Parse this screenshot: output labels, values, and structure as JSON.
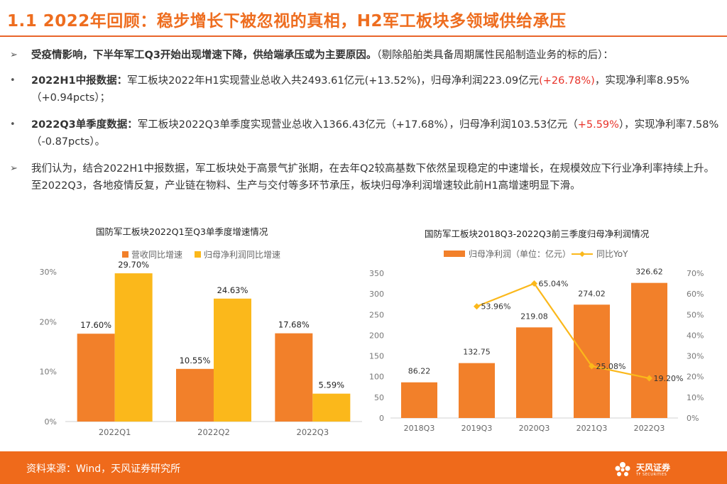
{
  "title": "1.1 2022年回顾：稳步增长下被忽视的真相，H2军工板块多领域供给承压",
  "bullets": [
    {
      "marker": "➢",
      "bold": "受疫情影响，下半年军工Q3开始出现增速下降，供给端承压或为主要原因。",
      "text": "（剔除船舶类具备周期属性民船制造业务的标的后）："
    },
    {
      "marker": "•",
      "bold": "2022H1中报数据：",
      "text_a": "军工板块2022年H1实现营业总收入共2493.61亿元(+13.52%)，归母净利润223.09亿元",
      "red": "(+26.78%)",
      "text_b": "，实现净利率8.95%（+0.94pcts）；"
    },
    {
      "marker": "•",
      "bold": "2022Q3单季度数据：",
      "text_a": "军工板块2022Q3单季度实现营业总收入1366.43亿元（+17.68%），归母净利润103.53亿元（",
      "red": "+5.59%",
      "text_b": "），实现净利率7.58%（-0.87pcts）。"
    },
    {
      "marker": "➢",
      "text": "我们认为，结合2022H1中报数据，军工板块处于高景气扩张期，在去年Q2较高基数下依然呈现稳定的中速增长，在规模效应下行业净利率持续上升。至2022Q3，各地疫情反复，产业链在物料、生产与交付等多环节承压，板块归母净利润增速较此前H1高增速明显下滑。"
    }
  ],
  "colors": {
    "orange": "#f2802a",
    "yellow": "#fbb81b",
    "accent": "#ee6d1f",
    "red": "#e8332a"
  },
  "chart_data": [
    {
      "type": "bar",
      "title": "国防军工板块2022Q1至Q3单季度增速情况",
      "categories": [
        "2022Q1",
        "2022Q2",
        "2022Q3"
      ],
      "series": [
        {
          "name": "营收同比增速",
          "values": [
            17.6,
            10.55,
            17.68
          ],
          "labels": [
            "17.60%",
            "10.55%",
            "17.68%"
          ],
          "color": "#f2802a"
        },
        {
          "name": "归母净利润同比增速",
          "values": [
            29.7,
            24.63,
            5.59
          ],
          "labels": [
            "29.70%",
            "24.63%",
            "5.59%"
          ],
          "color": "#fbb81b"
        }
      ],
      "ylim": [
        0,
        30
      ],
      "yticks": [
        "0%",
        "10%",
        "20%",
        "30%"
      ],
      "legend": "top-left",
      "grid": false
    },
    {
      "type": "bar+line",
      "title": "国防军工板块2018Q3-2022Q3前三季度归母净利润情况",
      "categories": [
        "2018Q3",
        "2019Q3",
        "2020Q3",
        "2021Q3",
        "2022Q3"
      ],
      "bars": {
        "name": "归母净利润（单位：亿元）",
        "values": [
          86.22,
          132.75,
          219.08,
          274.02,
          326.62
        ],
        "labels": [
          "86.22",
          "132.75",
          "219.08",
          "274.02",
          "326.62"
        ],
        "color": "#f2802a"
      },
      "line": {
        "name": "同比YoY",
        "values": [
          null,
          53.96,
          65.04,
          25.08,
          19.2
        ],
        "labels": [
          "",
          "53.96%",
          "65.04%",
          "25.08%",
          "19.20%"
        ],
        "color": "#fbb81b"
      },
      "ylim_left": [
        0,
        350
      ],
      "yticks_left": [
        "0",
        "50",
        "100",
        "150",
        "200",
        "250",
        "300",
        "350"
      ],
      "ylim_right": [
        0,
        70
      ],
      "yticks_right": [
        "0%",
        "10%",
        "20%",
        "30%",
        "40%",
        "50%",
        "60%",
        "70%"
      ],
      "legend": "top",
      "grid": false
    }
  ],
  "footer": {
    "source": "资料来源：Wind，天风证券研究所",
    "logo_cn": "天风证券",
    "logo_en": "TF SECURITIES"
  }
}
